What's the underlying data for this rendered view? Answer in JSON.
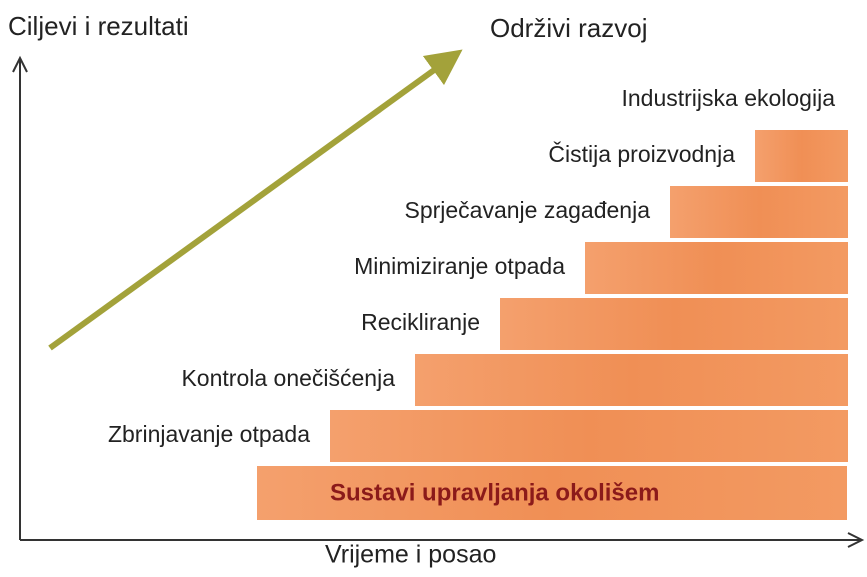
{
  "axis_y_label": "Ciljevi i rezultati",
  "axis_x_label": "Vrijeme i posao",
  "goal": "Održivi razvoj",
  "base": "Sustavi upravljanja okolišem",
  "steps": [
    "Zbrinjavanje otpada",
    "Kontrola onečišćenja",
    "Recikliranje",
    "Minimiziranje otpada",
    "Sprječavanje zagađenja",
    "Čistija proizvodnja",
    "Industrijska ekologija"
  ]
}
